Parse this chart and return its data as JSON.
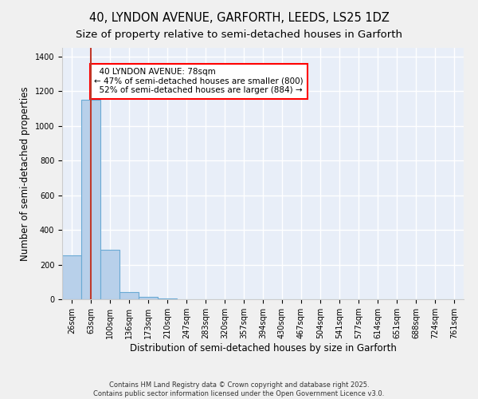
{
  "title_line1": "40, LYNDON AVENUE, GARFORTH, LEEDS, LS25 1DZ",
  "title_line2": "Size of property relative to semi-detached houses in Garforth",
  "xlabel": "Distribution of semi-detached houses by size in Garforth",
  "ylabel": "Number of semi-detached properties",
  "bin_labels": [
    "26sqm",
    "63sqm",
    "100sqm",
    "136sqm",
    "173sqm",
    "210sqm",
    "247sqm",
    "283sqm",
    "320sqm",
    "357sqm",
    "394sqm",
    "430sqm",
    "467sqm",
    "504sqm",
    "541sqm",
    "577sqm",
    "614sqm",
    "651sqm",
    "688sqm",
    "724sqm",
    "761sqm"
  ],
  "bar_values": [
    255,
    1150,
    285,
    40,
    15,
    5,
    0,
    0,
    0,
    0,
    0,
    0,
    0,
    0,
    0,
    0,
    0,
    0,
    0,
    0,
    0
  ],
  "bar_color": "#b8d0ea",
  "bar_edge_color": "#6aaad4",
  "bar_edge_width": 0.8,
  "red_line_x": 1.0,
  "red_line_color": "#c0392b",
  "annotation_text": "  40 LYNDON AVENUE: 78sqm\n← 47% of semi-detached houses are smaller (800)\n  52% of semi-detached houses are larger (884) →",
  "ylim": [
    0,
    1450
  ],
  "yticks": [
    0,
    200,
    400,
    600,
    800,
    1000,
    1200,
    1400
  ],
  "background_color": "#e8eef8",
  "grid_color": "#ffffff",
  "footnote": "Contains HM Land Registry data © Crown copyright and database right 2025.\nContains public sector information licensed under the Open Government Licence v3.0.",
  "title_fontsize": 10.5,
  "subtitle_fontsize": 9.5,
  "tick_fontsize": 7,
  "axis_label_fontsize": 8.5,
  "annotation_fontsize": 7.5
}
